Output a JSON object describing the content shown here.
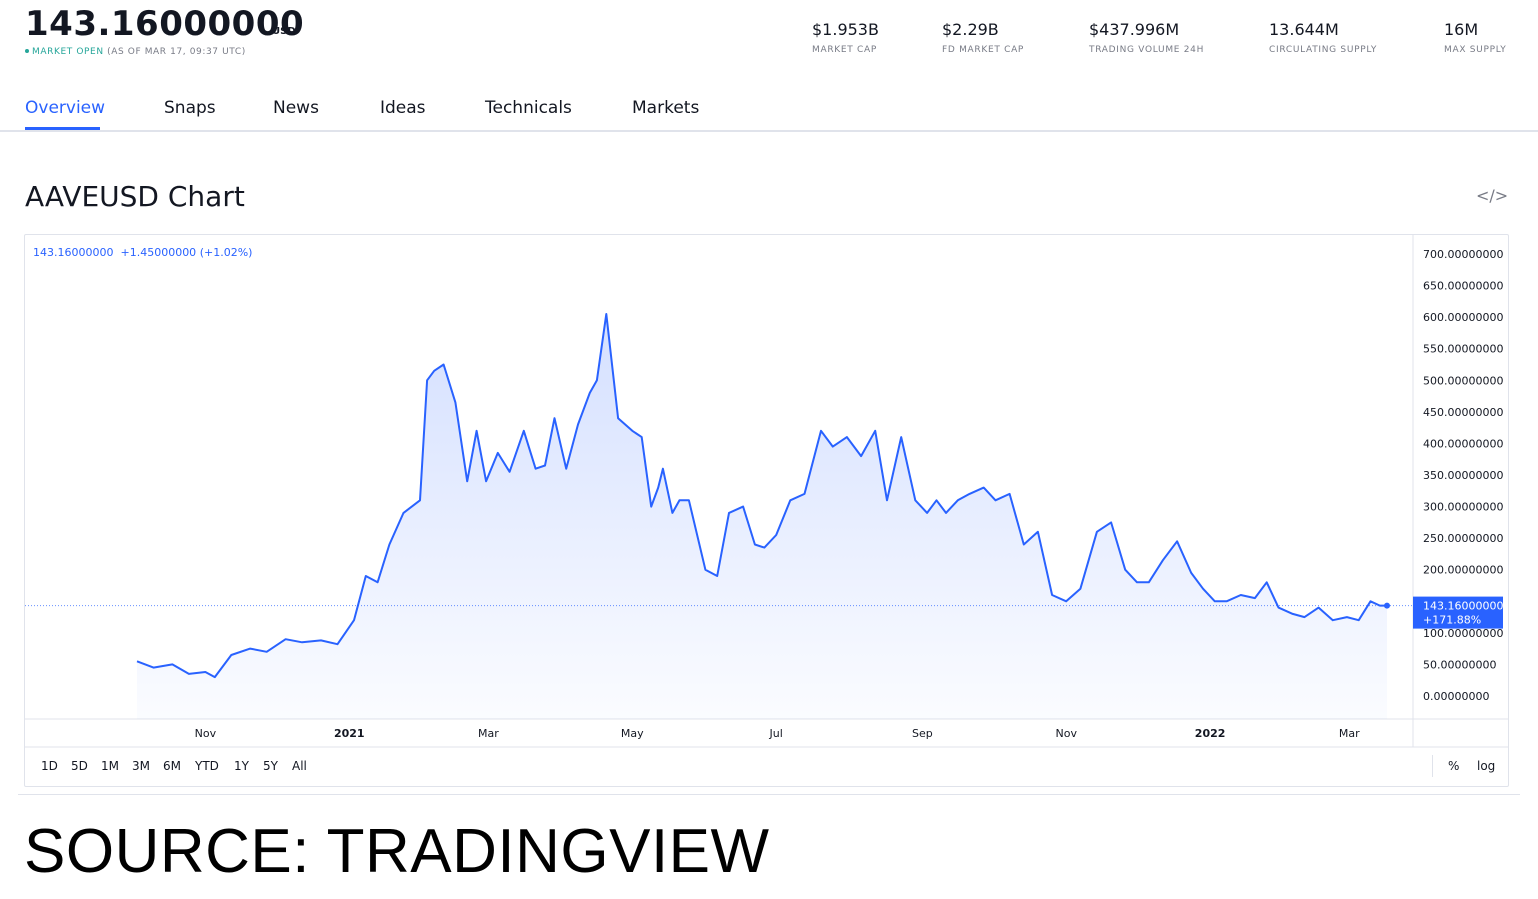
{
  "header": {
    "price": "143.16000000",
    "currency": "USD",
    "status": "MARKET OPEN",
    "as_of": "(AS OF MAR 17, 09:37 UTC)"
  },
  "stats": [
    {
      "value": "$1.953B",
      "label": "MARKET CAP"
    },
    {
      "value": "$2.29B",
      "label": "FD MARKET CAP"
    },
    {
      "value": "$437.996M",
      "label": "TRADING VOLUME 24H"
    },
    {
      "value": "13.644M",
      "label": "CIRCULATING SUPPLY"
    },
    {
      "value": "16M",
      "label": "MAX SUPPLY"
    }
  ],
  "tabs": [
    {
      "label": "Overview",
      "active": true
    },
    {
      "label": "Snaps"
    },
    {
      "label": "News"
    },
    {
      "label": "Ideas"
    },
    {
      "label": "Technicals"
    },
    {
      "label": "Markets"
    }
  ],
  "chart_title": "AAVEUSD Chart",
  "embed_icon": "code-embed-icon",
  "legend": {
    "price": "143.16000000",
    "change": "+1.45000000",
    "change_pct": "(+1.02%)"
  },
  "last_price_label": {
    "price": "143.16000000",
    "pct": "+171.88%"
  },
  "ranges": [
    "1D",
    "5D",
    "1M",
    "3M",
    "6M",
    "YTD",
    "1Y",
    "5Y",
    "All"
  ],
  "scale_options": [
    "%",
    "log"
  ],
  "source_text": "SOURCE: TRADINGVIEW",
  "colors": {
    "line": "#2962ff",
    "accent": "#2962ff",
    "open": "#26a69a"
  },
  "chart_data": {
    "type": "area",
    "title": "AAVEUSD Chart",
    "xlabel": "",
    "ylabel": "",
    "ylim": [
      0,
      700
    ],
    "y_ticks": [
      "700.00000000",
      "650.00000000",
      "600.00000000",
      "550.00000000",
      "500.00000000",
      "450.00000000",
      "400.00000000",
      "350.00000000",
      "300.00000000",
      "250.00000000",
      "200.00000000",
      "150.00000000",
      "100.00000000",
      "50.00000000",
      "0.00000000"
    ],
    "x_ticks": [
      {
        "label": "Nov",
        "date": "2020-11-01"
      },
      {
        "label": "2021",
        "date": "2021-01-01",
        "bold": true
      },
      {
        "label": "Mar",
        "date": "2021-03-01"
      },
      {
        "label": "May",
        "date": "2021-05-01"
      },
      {
        "label": "Jul",
        "date": "2021-07-01"
      },
      {
        "label": "Sep",
        "date": "2021-09-01"
      },
      {
        "label": "Nov",
        "date": "2021-11-01"
      },
      {
        "label": "2022",
        "date": "2022-01-01",
        "bold": true
      },
      {
        "label": "Mar",
        "date": "2022-03-01"
      }
    ],
    "x": [
      "2020-10-03",
      "2020-10-10",
      "2020-10-18",
      "2020-10-25",
      "2020-11-01",
      "2020-11-05",
      "2020-11-12",
      "2020-11-20",
      "2020-11-27",
      "2020-12-05",
      "2020-12-12",
      "2020-12-20",
      "2020-12-27",
      "2021-01-03",
      "2021-01-08",
      "2021-01-13",
      "2021-01-18",
      "2021-01-24",
      "2021-01-31",
      "2021-02-03",
      "2021-02-06",
      "2021-02-10",
      "2021-02-15",
      "2021-02-20",
      "2021-02-24",
      "2021-02-28",
      "2021-03-05",
      "2021-03-10",
      "2021-03-16",
      "2021-03-21",
      "2021-03-25",
      "2021-03-29",
      "2021-04-03",
      "2021-04-08",
      "2021-04-13",
      "2021-04-16",
      "2021-04-20",
      "2021-04-25",
      "2021-05-01",
      "2021-05-05",
      "2021-05-09",
      "2021-05-12",
      "2021-05-14",
      "2021-05-18",
      "2021-05-21",
      "2021-05-25",
      "2021-06-01",
      "2021-06-06",
      "2021-06-11",
      "2021-06-17",
      "2021-06-22",
      "2021-06-26",
      "2021-07-01",
      "2021-07-07",
      "2021-07-13",
      "2021-07-20",
      "2021-07-25",
      "2021-07-31",
      "2021-08-06",
      "2021-08-12",
      "2021-08-17",
      "2021-08-23",
      "2021-08-29",
      "2021-09-03",
      "2021-09-07",
      "2021-09-11",
      "2021-09-16",
      "2021-09-21",
      "2021-09-27",
      "2021-10-02",
      "2021-10-08",
      "2021-10-14",
      "2021-10-20",
      "2021-10-26",
      "2021-11-01",
      "2021-11-07",
      "2021-11-14",
      "2021-11-20",
      "2021-11-26",
      "2021-12-01",
      "2021-12-06",
      "2021-12-12",
      "2021-12-18",
      "2021-12-24",
      "2021-12-29",
      "2022-01-03",
      "2022-01-08",
      "2022-01-14",
      "2022-01-20",
      "2022-01-25",
      "2022-01-30",
      "2022-02-05",
      "2022-02-10",
      "2022-02-16",
      "2022-02-22",
      "2022-02-28",
      "2022-03-05",
      "2022-03-10",
      "2022-03-14",
      "2022-03-17"
    ],
    "series": [
      {
        "values": [
          55,
          45,
          50,
          35,
          38,
          30,
          65,
          75,
          70,
          90,
          85,
          88,
          82,
          120,
          190,
          180,
          240,
          290,
          310,
          500,
          515,
          525,
          465,
          340,
          420,
          340,
          385,
          355,
          420,
          360,
          365,
          440,
          360,
          430,
          480,
          500,
          605,
          440,
          420,
          410,
          300,
          330,
          360,
          290,
          310,
          310,
          200,
          190,
          290,
          300,
          240,
          235,
          255,
          310,
          320,
          420,
          395,
          410,
          380,
          420,
          310,
          410,
          310,
          290,
          310,
          290,
          310,
          320,
          330,
          310,
          320,
          240,
          260,
          160,
          150,
          170,
          260,
          275,
          200,
          180,
          180,
          215,
          245,
          195,
          170,
          150,
          150,
          160,
          155,
          180,
          140,
          130,
          125,
          140,
          120,
          125,
          120,
          150,
          143.16,
          143.16
        ]
      }
    ]
  }
}
